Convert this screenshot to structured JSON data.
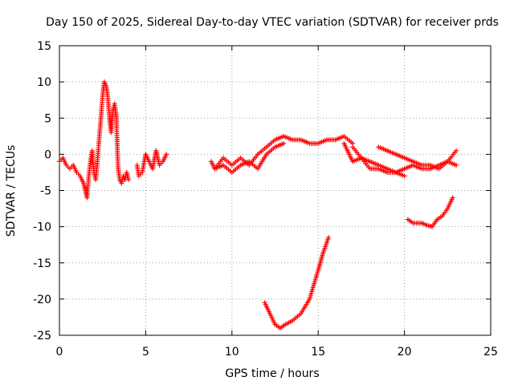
{
  "chart_data": {
    "type": "scatter",
    "title": "Day 150 of 2025, Sidereal Day-to-day VTEC variation (SDTVAR) for receiver prds",
    "xlabel": "GPS time / hours",
    "ylabel": "SDTVAR / TECUs",
    "xlim": [
      0,
      25
    ],
    "ylim": [
      -25,
      15
    ],
    "x_ticks": [
      0,
      5,
      10,
      15,
      20,
      25
    ],
    "y_ticks": [
      -25,
      -20,
      -15,
      -10,
      -5,
      0,
      5,
      10,
      15
    ],
    "grid": true,
    "marker": "plus",
    "color": "#ff0000",
    "series": [
      {
        "name": "segment-early",
        "x": [
          0.0,
          0.2,
          0.4,
          0.6,
          0.8,
          1.0,
          1.2,
          1.4,
          1.6,
          1.7,
          1.8,
          1.9,
          2.0,
          2.1,
          2.2,
          2.3,
          2.4,
          2.5,
          2.6,
          2.7,
          2.8,
          2.9,
          3.0,
          3.1,
          3.2,
          3.3,
          3.4,
          3.5,
          3.6,
          3.7,
          3.8,
          3.9,
          4.0
        ],
        "y": [
          -1.0,
          -0.5,
          -1.5,
          -2.0,
          -1.5,
          -2.5,
          -3.0,
          -4.0,
          -6.0,
          -3.0,
          -1.0,
          0.5,
          -2.5,
          -3.5,
          -1.0,
          2.0,
          5.0,
          8.0,
          10.0,
          9.5,
          8.0,
          5.0,
          3.0,
          6.0,
          7.0,
          5.0,
          -2.0,
          -3.5,
          -4.0,
          -3.0,
          -3.5,
          -2.5,
          -3.5
        ]
      },
      {
        "name": "segment-mid",
        "x": [
          4.5,
          4.6,
          4.8,
          5.0,
          5.2,
          5.4,
          5.6,
          5.8,
          6.0,
          6.2
        ],
        "y": [
          -1.5,
          -3.0,
          -2.5,
          0.0,
          -1.0,
          -2.0,
          0.5,
          -1.5,
          -1.0,
          0.0
        ]
      },
      {
        "name": "segment-a",
        "x": [
          8.8,
          9.0,
          9.5,
          10.0,
          10.5,
          11.0,
          11.5,
          12.0,
          12.5,
          13.0,
          13.5,
          14.0,
          14.5,
          15.0,
          15.5,
          16.0,
          16.5,
          17.0
        ],
        "y": [
          -1.0,
          -2.0,
          -0.5,
          -1.5,
          -0.5,
          -1.5,
          0.0,
          1.0,
          2.0,
          2.5,
          2.0,
          2.0,
          1.5,
          1.5,
          2.0,
          2.0,
          2.5,
          1.5
        ]
      },
      {
        "name": "segment-b",
        "x": [
          9.0,
          9.5,
          10.0,
          10.5,
          11.0,
          11.5,
          12.0,
          12.5,
          13.0
        ],
        "y": [
          -2.0,
          -1.5,
          -2.5,
          -1.5,
          -1.0,
          -2.0,
          0.0,
          1.0,
          1.5
        ]
      },
      {
        "name": "segment-c",
        "x": [
          16.5,
          17.0,
          17.5,
          18.0,
          18.5,
          19.0,
          19.5,
          20.0,
          20.5,
          21.0,
          21.5,
          22.0,
          22.5,
          23.0
        ],
        "y": [
          1.5,
          -1.0,
          -0.5,
          -1.0,
          -1.5,
          -2.0,
          -2.5,
          -2.0,
          -1.5,
          -2.0,
          -2.0,
          -1.5,
          -1.0,
          -1.5
        ]
      },
      {
        "name": "segment-d",
        "x": [
          17.0,
          17.5,
          18.0,
          18.5,
          19.0,
          19.5,
          20.0
        ],
        "y": [
          1.0,
          -0.5,
          -2.0,
          -2.0,
          -2.5,
          -2.5,
          -3.0
        ]
      },
      {
        "name": "segment-e",
        "x": [
          18.5,
          19.0,
          19.5,
          20.0,
          20.5,
          21.0,
          21.5,
          22.0,
          22.5,
          23.0
        ],
        "y": [
          1.0,
          0.5,
          0.0,
          -0.5,
          -1.0,
          -1.5,
          -1.5,
          -2.0,
          -1.0,
          0.5
        ]
      },
      {
        "name": "segment-low",
        "x": [
          11.9,
          12.2,
          12.5,
          12.8,
          13.1,
          13.5,
          14.0,
          14.5,
          15.0,
          15.3,
          15.6
        ],
        "y": [
          -20.5,
          -22.0,
          -23.5,
          -24.0,
          -23.5,
          -23.0,
          -22.0,
          -20.0,
          -16.0,
          -13.5,
          -11.5
        ]
      },
      {
        "name": "segment-right",
        "x": [
          20.2,
          20.5,
          20.8,
          21.0,
          21.3,
          21.6,
          21.9,
          22.2,
          22.5,
          22.8
        ],
        "y": [
          -9.0,
          -9.5,
          -9.5,
          -9.5,
          -9.8,
          -10.0,
          -9.0,
          -8.5,
          -7.5,
          -6.0
        ]
      }
    ]
  }
}
